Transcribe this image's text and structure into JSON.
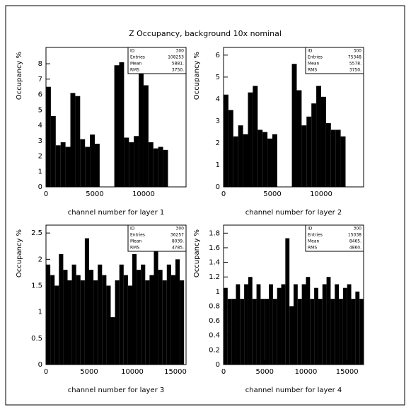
{
  "page_title": "Z Occupancy, background 10x nominal",
  "chart_data": [
    {
      "type": "histogram",
      "ylabel": "Occupancy %",
      "xlabel": "channel number for layer 1",
      "bins": [
        0,
        500,
        1000,
        1500,
        2000,
        2500,
        3000,
        3500,
        4000,
        4500,
        5000,
        5500,
        6000,
        6500,
        7000,
        7500,
        8000,
        8500,
        9000,
        9500,
        10000,
        10500,
        11000,
        11500,
        12000,
        12500
      ],
      "values": [
        6.5,
        4.6,
        2.7,
        2.9,
        2.6,
        6.1,
        5.9,
        3.1,
        2.6,
        3.4,
        2.8,
        0,
        0,
        0,
        7.9,
        8.1,
        3.2,
        2.9,
        3.3,
        7.7,
        6.6,
        2.9,
        2.5,
        2.6,
        2.4
      ],
      "xlim": [
        0,
        14350
      ],
      "ylim": [
        0,
        9.06
      ],
      "xticks": [
        0,
        5000,
        10000
      ],
      "yticks": [
        0,
        1,
        2,
        3,
        4,
        5,
        6,
        7,
        8
      ],
      "stats": [
        [
          "ID",
          "300"
        ],
        [
          "Entries",
          "108253"
        ],
        [
          "Mean",
          "5881."
        ],
        [
          "RMS",
          "3750."
        ]
      ]
    },
    {
      "type": "histogram",
      "ylabel": "Occupancy %",
      "xlabel": "channel number for layer 2",
      "bins": [
        0,
        500,
        1000,
        1500,
        2000,
        2500,
        3000,
        3500,
        4000,
        4500,
        5000,
        5500,
        6000,
        6500,
        7000,
        7500,
        8000,
        8500,
        9000,
        9500,
        10000,
        10500,
        11000,
        11500,
        12000,
        12500
      ],
      "values": [
        4.2,
        3.5,
        2.3,
        2.8,
        2.4,
        4.3,
        4.6,
        2.6,
        2.5,
        2.2,
        2.4,
        0,
        0,
        0,
        5.6,
        4.4,
        2.8,
        3.2,
        3.8,
        4.6,
        4.1,
        2.9,
        2.6,
        2.6,
        2.3
      ],
      "xlim": [
        0,
        14350
      ],
      "ylim": [
        0,
        6.35
      ],
      "xticks": [
        0,
        5000,
        10000
      ],
      "yticks": [
        0,
        1,
        2,
        3,
        4,
        5,
        6
      ],
      "stats": [
        [
          "ID",
          "300"
        ],
        [
          "Entries",
          "75348"
        ],
        [
          "Mean",
          "5578."
        ],
        [
          "RMS",
          "3750."
        ]
      ]
    },
    {
      "type": "histogram",
      "ylabel": "Occupancy %",
      "xlabel": "channel number for layer 3",
      "bins": [
        0,
        500,
        1000,
        1500,
        2000,
        2500,
        3000,
        3500,
        4000,
        4500,
        5000,
        5500,
        6000,
        6500,
        7000,
        7500,
        8000,
        8500,
        9000,
        9500,
        10000,
        10500,
        11000,
        11500,
        12000,
        12500,
        13000,
        13500,
        14000,
        14500,
        15000,
        15500,
        16000
      ],
      "values": [
        1.9,
        1.7,
        1.5,
        2.1,
        1.8,
        1.6,
        1.9,
        1.7,
        1.6,
        2.4,
        1.8,
        1.6,
        1.9,
        1.7,
        1.5,
        0.9,
        1.6,
        1.9,
        1.7,
        1.5,
        2.1,
        1.8,
        1.9,
        1.6,
        1.7,
        2.2,
        1.8,
        1.6,
        1.9,
        1.7,
        2.0,
        1.6
      ],
      "xlim": [
        0,
        16230
      ],
      "ylim": [
        0,
        2.65
      ],
      "xticks": [
        0,
        5000,
        10000,
        15000
      ],
      "yticks": [
        0,
        0.5,
        1,
        1.5,
        2,
        2.5
      ],
      "stats": [
        [
          "ID",
          "300"
        ],
        [
          "Entries",
          "36257"
        ],
        [
          "Mean",
          "8039."
        ],
        [
          "RMS",
          "4785."
        ]
      ]
    },
    {
      "type": "histogram",
      "ylabel": "Occupancy %",
      "xlabel": "channel number for layer 4",
      "bins": [
        0,
        500,
        1000,
        1500,
        2000,
        2500,
        3000,
        3500,
        4000,
        4500,
        5000,
        5500,
        6000,
        6500,
        7000,
        7500,
        8000,
        8500,
        9000,
        9500,
        10000,
        10500,
        11000,
        11500,
        12000,
        12500,
        13000,
        13500,
        14000,
        14500,
        15000,
        15500,
        16000,
        16500,
        17000
      ],
      "values": [
        1.05,
        0.9,
        0.9,
        1.1,
        0.9,
        1.1,
        1.2,
        0.9,
        1.1,
        0.9,
        0.9,
        1.1,
        0.9,
        1.05,
        1.1,
        1.73,
        0.8,
        1.1,
        0.9,
        1.1,
        1.2,
        0.9,
        1.05,
        0.9,
        1.1,
        1.2,
        0.9,
        1.1,
        0.9,
        1.05,
        1.1,
        0.9,
        1.0,
        0.9
      ],
      "xlim": [
        0,
        17000
      ],
      "ylim": [
        0,
        1.91
      ],
      "xticks": [
        0,
        5000,
        10000,
        15000
      ],
      "yticks": [
        0,
        0.2,
        0.4,
        0.6,
        0.8,
        1,
        1.2,
        1.4,
        1.6,
        1.8
      ],
      "stats": [
        [
          "ID",
          "300"
        ],
        [
          "Entries",
          "15038"
        ],
        [
          "Mean",
          "8465."
        ],
        [
          "RMS",
          "4860."
        ]
      ]
    }
  ]
}
